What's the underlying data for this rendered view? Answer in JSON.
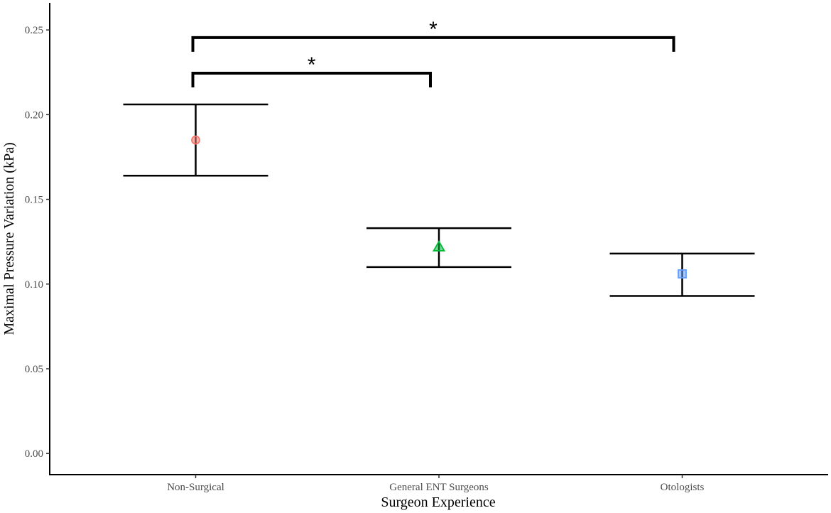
{
  "chart_data": {
    "type": "scatter",
    "xlabel": "Surgeon Experience",
    "ylabel": "Maximal Pressure Variation (kPa)",
    "ylim": [
      -0.0125,
      0.266
    ],
    "yticks": [
      0.0,
      0.05,
      0.1,
      0.15,
      0.2,
      0.25
    ],
    "ytick_labels": [
      "0.00",
      "0.05",
      "0.10",
      "0.15",
      "0.20",
      "0.25"
    ],
    "grid": false,
    "categories": [
      "Non-Surgical",
      "General ENT Surgeons",
      "Otologists"
    ],
    "points": [
      {
        "category": "Non-Surgical",
        "mean": 0.185,
        "lower": 0.164,
        "upper": 0.206,
        "shape": "circle",
        "color": "#F8766D"
      },
      {
        "category": "General ENT Surgeons",
        "mean": 0.122,
        "lower": 0.11,
        "upper": 0.133,
        "shape": "triangle",
        "color": "#00BA38"
      },
      {
        "category": "Otologists",
        "mean": 0.106,
        "lower": 0.093,
        "upper": 0.118,
        "shape": "square",
        "color": "#619CFF"
      }
    ],
    "significance": [
      {
        "from": "Non-Surgical",
        "to": "General ENT Surgeons",
        "y": 0.2245,
        "label": "*"
      },
      {
        "from": "Non-Surgical",
        "to": "Otologists",
        "y": 0.2455,
        "label": "*"
      }
    ]
  }
}
